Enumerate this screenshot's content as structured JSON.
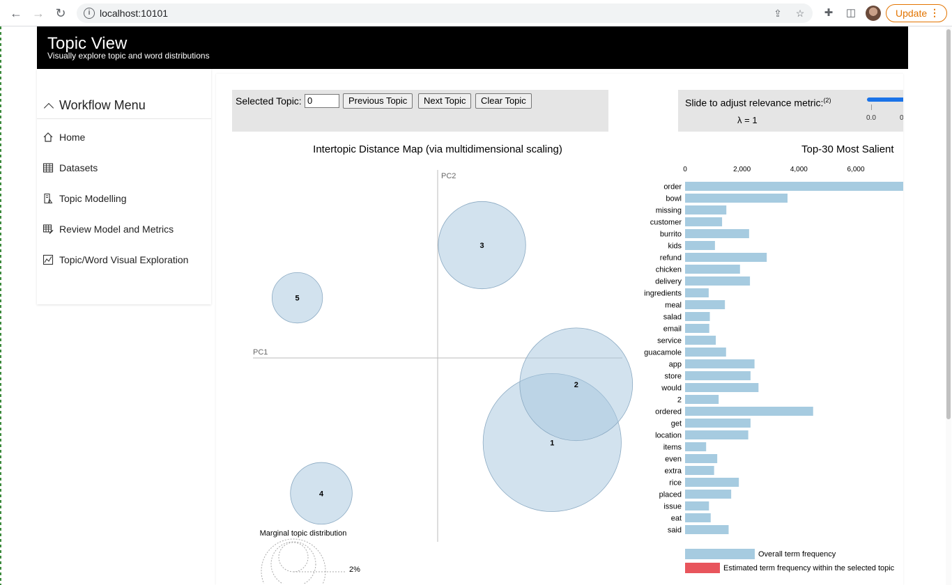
{
  "browser": {
    "url": "localhost:10101",
    "update_label": "Update",
    "update_menu": "⋮"
  },
  "header": {
    "title": "Topic View",
    "subtitle": "Visually explore topic and word distributions"
  },
  "sidebar": {
    "menu_title": "Workflow Menu",
    "items": [
      {
        "label": "Home",
        "icon": "home-icon"
      },
      {
        "label": "Datasets",
        "icon": "table-icon"
      },
      {
        "label": "Topic Modelling",
        "icon": "flask-icon"
      },
      {
        "label": "Review Model and Metrics",
        "icon": "table-edit-icon"
      },
      {
        "label": "Topic/Word Visual Exploration",
        "icon": "chart-icon"
      }
    ]
  },
  "controls": {
    "selected_topic_label": "Selected Topic:",
    "selected_topic_value": "0",
    "previous_label": "Previous Topic",
    "next_label": "Next Topic",
    "clear_label": "Clear Topic",
    "relevance_label": "Slide to adjust relevance metric:",
    "relevance_footnote": "(2)",
    "lambda_text": "λ = 1",
    "slider_min": "0.0",
    "slider_next": "0"
  },
  "chart_data": [
    {
      "type": "scatter",
      "title": "Intertopic Distance Map (via multidimensional scaling)",
      "xlabel": "PC1",
      "ylabel": "PC2",
      "topics": [
        {
          "id": "1",
          "pc1": 0.62,
          "pc2": -0.45,
          "size": 0.3
        },
        {
          "id": "2",
          "pc1": 0.75,
          "pc2": -0.14,
          "size": 0.2
        },
        {
          "id": "3",
          "pc1": 0.24,
          "pc2": 0.6,
          "size": 0.12
        },
        {
          "id": "4",
          "pc1": -0.63,
          "pc2": -0.72,
          "size": 0.06
        },
        {
          "id": "5",
          "pc1": -0.76,
          "pc2": 0.32,
          "size": 0.04
        }
      ],
      "legend_title": "Marginal topic distribution",
      "legend_values": [
        "2%"
      ]
    },
    {
      "type": "bar",
      "title": "Top-30 Most Salient",
      "ticks": [
        "0",
        "2,000",
        "4,000",
        "6,000"
      ],
      "xlim": [
        0,
        7650
      ],
      "categories": [
        "order",
        "bowl",
        "missing",
        "customer",
        "burrito",
        "kids",
        "refund",
        "chicken",
        "delivery",
        "ingredients",
        "meal",
        "salad",
        "email",
        "service",
        "guacamole",
        "app",
        "store",
        "would",
        "2",
        "ordered",
        "get",
        "location",
        "items",
        "even",
        "extra",
        "rice",
        "placed",
        "issue",
        "eat",
        "said"
      ],
      "values": [
        7800,
        3600,
        1450,
        1300,
        2250,
        1050,
        2870,
        1930,
        2280,
        830,
        1400,
        870,
        850,
        1080,
        1440,
        2440,
        2300,
        2580,
        1180,
        4500,
        2300,
        2220,
        740,
        1130,
        1020,
        1890,
        1620,
        840,
        900,
        1530
      ],
      "legend": [
        "Overall term frequency",
        "Estimated term frequency within the selected topic"
      ],
      "colors": {
        "overall": "#a6cbe0",
        "topic": "#e8555c"
      }
    }
  ]
}
